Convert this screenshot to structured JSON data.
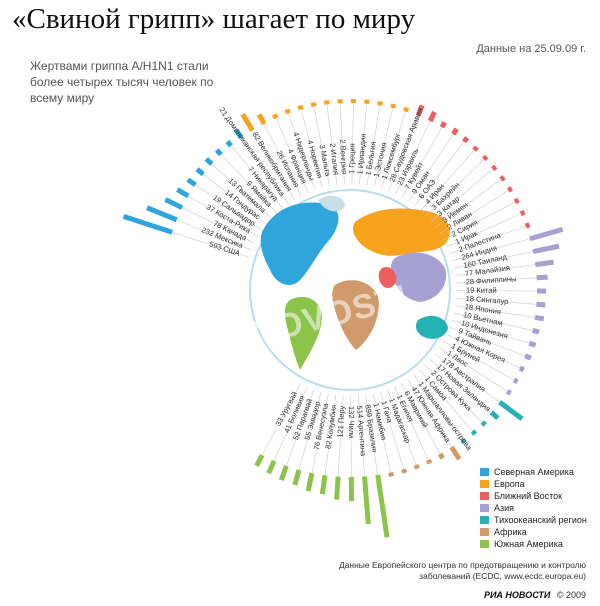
{
  "header": {
    "title": "«Свиной грипп» шагает по миру",
    "subtitle": "Жертвами гриппа A/H1N1 стали более четырех тысяч человек по всему миру",
    "date_note": "Данные на 25.09.09 г."
  },
  "watermark": "RIA NOVOSTI",
  "colors": {
    "north_america": "#2ea6dc",
    "europe": "#f6a21d",
    "middle_east": "#ec5f5f",
    "asia": "#a7a0d2",
    "pacific": "#25b0b4",
    "africa": "#d19a6a",
    "south_america": "#8cc34a"
  },
  "legend": [
    {
      "label": "Северная Америка",
      "color": "#2ea6dc"
    },
    {
      "label": "Европа",
      "color": "#f6a21d"
    },
    {
      "label": "Ближний Восток",
      "color": "#ec5f5f"
    },
    {
      "label": "Азия",
      "color": "#a7a0d2"
    },
    {
      "label": "Тихоокеанский регион",
      "color": "#25b0b4"
    },
    {
      "label": "Африка",
      "color": "#d19a6a"
    },
    {
      "label": "Южная Америка",
      "color": "#8cc34a"
    }
  ],
  "source": "Данные Европейского центра по предотвращению и контролю заболеваний (ECDC, www.ecdc.europa.eu)",
  "credit": {
    "brand": "РИА НОВОСТИ",
    "year": "© 2009"
  },
  "chart_data": {
    "type": "bar",
    "layout": "radial",
    "series": [
      {
        "name": "Северная Америка",
        "items": [
          {
            "country": "США",
            "value": 593
          },
          {
            "country": "Мексика",
            "value": 232
          },
          {
            "country": "Канада",
            "value": 78
          },
          {
            "country": "Коста-Рика",
            "value": 37
          },
          {
            "country": "Сальвадор",
            "value": 19
          },
          {
            "country": "Гондурас",
            "value": 14
          },
          {
            "country": "Гватемала",
            "value": 13
          },
          {
            "country": "Ямайка",
            "value": 9
          },
          {
            "country": "Никарагуа",
            "value": 7
          },
          {
            "country": "Доминиканская республика",
            "value": 21
          }
        ]
      },
      {
        "name": "Европа",
        "items": [
          {
            "country": "Великобритания",
            "value": 82
          },
          {
            "country": "Испания",
            "value": 26
          },
          {
            "country": "Франция",
            "value": 4
          },
          {
            "country": "Нидерланды",
            "value": 4
          },
          {
            "country": "Норвегия",
            "value": 4
          },
          {
            "country": "Мальта",
            "value": 3
          },
          {
            "country": "Италия",
            "value": 2
          },
          {
            "country": "Венгрия",
            "value": 2
          },
          {
            "country": "Греция",
            "value": 1
          },
          {
            "country": "Ирландия",
            "value": 1
          },
          {
            "country": "Бельгия",
            "value": 1
          },
          {
            "country": "Эстония",
            "value": 1
          },
          {
            "country": "Люксембург",
            "value": 1
          }
        ]
      },
      {
        "name": "Ближний Восток",
        "items": [
          {
            "country": "Саудовская Аравия",
            "value": 28
          },
          {
            "country": "Израиль",
            "value": 23
          },
          {
            "country": "Кувейт",
            "value": 7
          },
          {
            "country": "Оман",
            "value": 9
          },
          {
            "country": "ОАЭ",
            "value": 6
          },
          {
            "country": "Иран",
            "value": 4
          },
          {
            "country": "Бахрейн",
            "value": 3
          },
          {
            "country": "Катар",
            "value": 3
          },
          {
            "country": "Йемен",
            "value": 3
          },
          {
            "country": "Ливан",
            "value": 2
          },
          {
            "country": "Сирия",
            "value": 2
          },
          {
            "country": "Ирак",
            "value": 1
          },
          {
            "country": "Палестина",
            "value": 2
          }
        ]
      },
      {
        "name": "Азия",
        "items": [
          {
            "country": "Индия",
            "value": 264
          },
          {
            "country": "Таиланд",
            "value": 160
          },
          {
            "country": "Малайзия",
            "value": 77
          },
          {
            "country": "Филиппины",
            "value": 28
          },
          {
            "country": "Китай",
            "value": 19
          },
          {
            "country": "Сингапур",
            "value": 18
          },
          {
            "country": "Япония",
            "value": 18
          },
          {
            "country": "Вьетнам",
            "value": 10
          },
          {
            "country": "Индонезия",
            "value": 10
          },
          {
            "country": "Тайвань",
            "value": 9
          },
          {
            "country": "Южная Корея",
            "value": 4
          },
          {
            "country": "Бруней",
            "value": 1
          },
          {
            "country": "Лаос",
            "value": 1
          }
        ]
      },
      {
        "name": "Тихоокеанский регион",
        "items": [
          {
            "country": "Австралия",
            "value": 178
          },
          {
            "country": "Новая Зеландия",
            "value": 17
          },
          {
            "country": "Острова Кука",
            "value": 2
          },
          {
            "country": "Самоа",
            "value": 1
          },
          {
            "country": "Маршалловы острова",
            "value": 1
          }
        ]
      },
      {
        "name": "Африка",
        "items": [
          {
            "country": "Южная Африка",
            "value": 47
          },
          {
            "country": "Маврикий",
            "value": 6
          },
          {
            "country": "Египет",
            "value": 1
          },
          {
            "country": "Мадагаскар",
            "value": 1
          },
          {
            "country": "Гана",
            "value": 1
          },
          {
            "country": "Намибия",
            "value": 1
          }
        ]
      },
      {
        "name": "Южная Америка",
        "items": [
          {
            "country": "Бразилия",
            "value": 899
          },
          {
            "country": "Аргентина",
            "value": 514
          },
          {
            "country": "Чили",
            "value": 132
          },
          {
            "country": "Перу",
            "value": 121
          },
          {
            "country": "Колумбия",
            "value": 82
          },
          {
            "country": "Венесуэла",
            "value": 76
          },
          {
            "country": "Эквадор",
            "value": 55
          },
          {
            "country": "Парагвай",
            "value": 52
          },
          {
            "country": "Боливия",
            "value": 41
          },
          {
            "country": "Уругвай",
            "value": 33
          }
        ]
      }
    ]
  }
}
